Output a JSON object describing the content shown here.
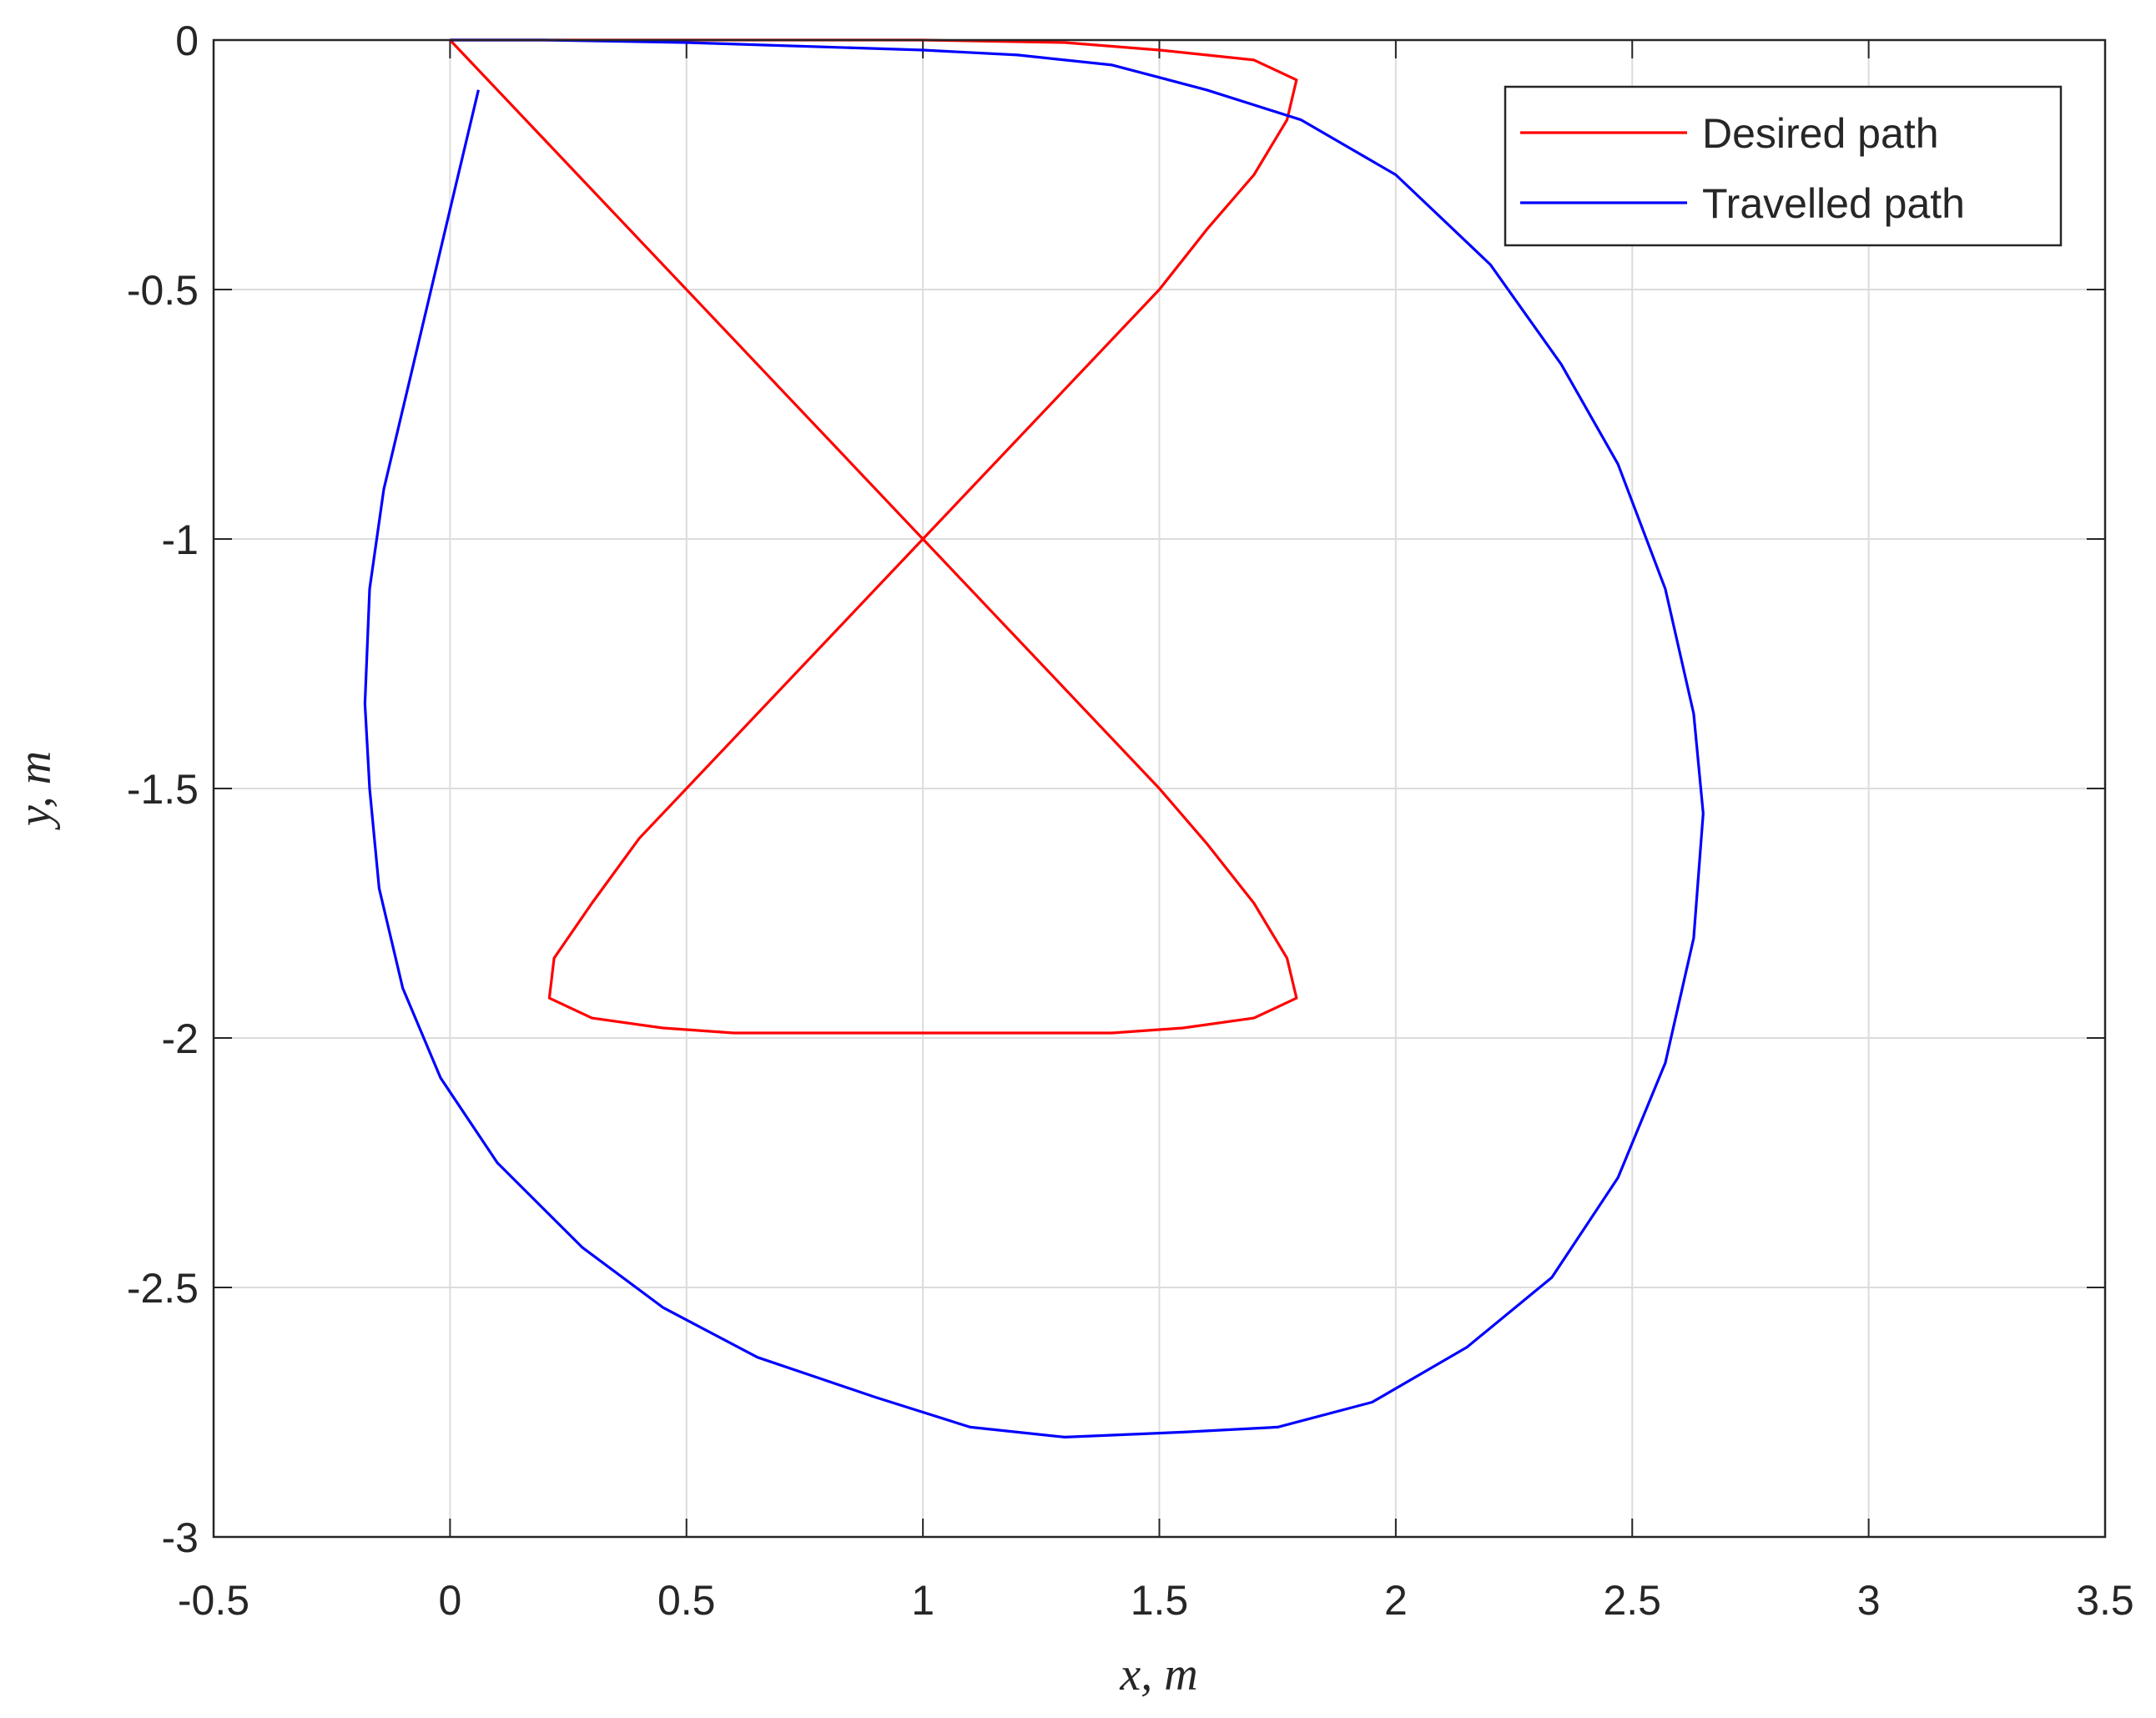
{
  "chart_data": {
    "type": "line",
    "xlabel": "x, m",
    "ylabel": "y, m",
    "xlim": [
      -0.5,
      3.5
    ],
    "ylim": [
      -3,
      0
    ],
    "xticks": [
      -0.5,
      0,
      0.5,
      1,
      1.5,
      2,
      2.5,
      3,
      3.5
    ],
    "yticks": [
      -3,
      -2.5,
      -2,
      -1.5,
      -1,
      -0.5,
      0
    ],
    "grid": true,
    "legend": "upper right",
    "series": [
      {
        "name": "Desired path",
        "color": "#ff0000",
        "x": [
          0,
          0.5,
          1,
          1.3,
          1.5,
          1.7,
          1.79,
          1.77,
          1.7,
          1.6,
          1.5,
          1,
          0.4,
          0.3,
          0.22,
          0.21,
          0.3,
          0.45,
          0.6,
          1,
          1.4,
          1.55,
          1.7,
          1.79,
          1.77,
          1.7,
          1.6,
          1.5,
          1,
          0
        ],
        "values": [
          0,
          0,
          0,
          -0.005,
          -0.02,
          -0.04,
          -0.08,
          -0.16,
          -0.27,
          -0.38,
          -0.5,
          -1,
          -1.6,
          -1.73,
          -1.84,
          -1.92,
          -1.96,
          -1.98,
          -1.99,
          -1.99,
          -1.99,
          -1.98,
          -1.96,
          -1.92,
          -1.84,
          -1.73,
          -1.61,
          -1.5,
          -1,
          0
        ]
      },
      {
        "name": "Travelled path",
        "color": "#0000ff",
        "x": [
          0,
          0.2,
          0.5,
          1,
          1.2,
          1.4,
          1.6,
          1.8,
          2,
          2.2,
          2.35,
          2.47,
          2.57,
          2.63,
          2.65,
          2.63,
          2.57,
          2.47,
          2.33,
          2.15,
          1.95,
          1.75,
          1.55,
          1.3,
          1.1,
          0.9,
          0.65,
          0.45,
          0.28,
          0.1,
          -0.02,
          -0.1,
          -0.15,
          -0.17,
          -0.18,
          -0.17,
          -0.14,
          -0.09,
          -0.04,
          0.01,
          0.06
        ],
        "values": [
          0,
          0,
          -0.005,
          -0.02,
          -0.03,
          -0.05,
          -0.1,
          -0.16,
          -0.27,
          -0.45,
          -0.65,
          -0.85,
          -1.1,
          -1.35,
          -1.55,
          -1.8,
          -2.05,
          -2.28,
          -2.48,
          -2.62,
          -2.73,
          -2.78,
          -2.79,
          -2.8,
          -2.78,
          -2.72,
          -2.64,
          -2.54,
          -2.42,
          -2.25,
          -2.08,
          -1.9,
          -1.7,
          -1.5,
          -1.33,
          -1.1,
          -0.9,
          -0.7,
          -0.5,
          -0.3,
          -0.1
        ]
      }
    ]
  }
}
